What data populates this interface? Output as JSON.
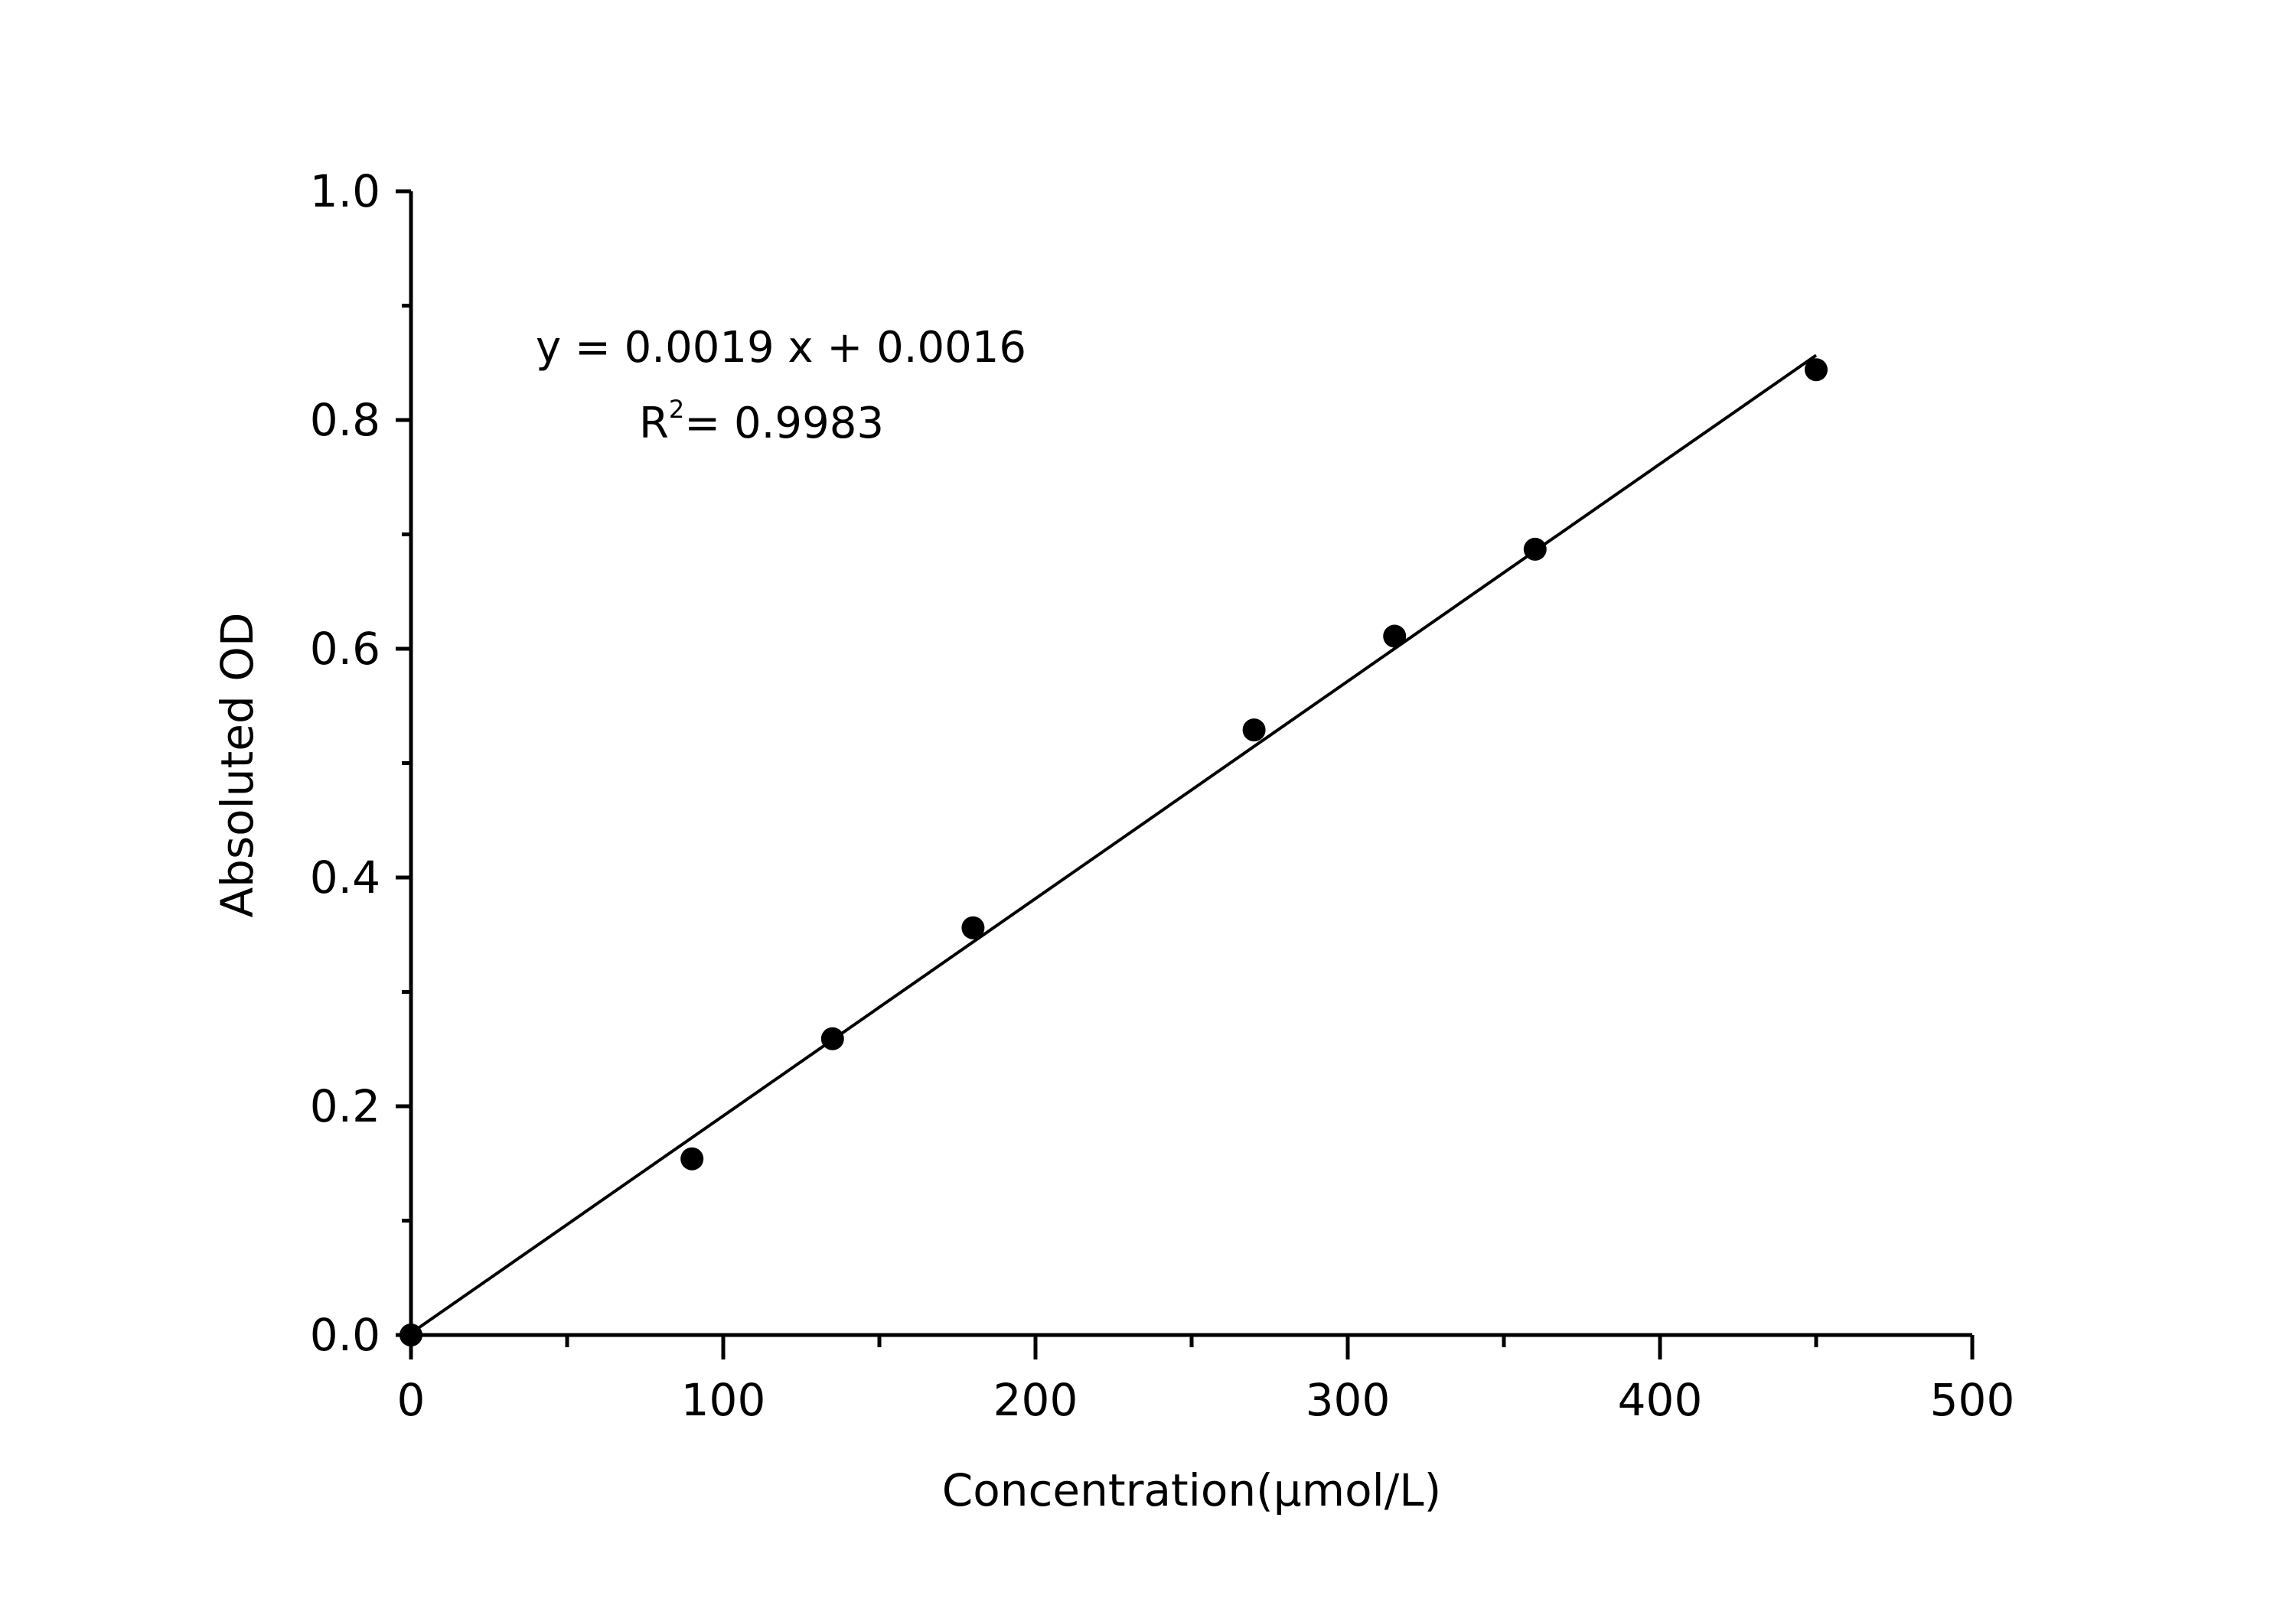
{
  "chart_data": {
    "type": "scatter",
    "xlabel": "Concentration(μmol/L)",
    "ylabel": "Absoluted OD",
    "xlim": [
      0,
      500
    ],
    "ylim": [
      0,
      1.0
    ],
    "xticks": [
      "0",
      "100",
      "200",
      "300",
      "400",
      "500"
    ],
    "yticks": [
      "0.0",
      "0.2",
      "0.4",
      "0.6",
      "0.8",
      "1.0"
    ],
    "grid": false,
    "points": {
      "x": [
        0,
        90,
        135,
        180,
        270,
        315,
        360,
        450
      ],
      "y": [
        0.0,
        0.154,
        0.259,
        0.356,
        0.529,
        0.611,
        0.687,
        0.844
      ]
    },
    "fit": {
      "slope": 0.0019,
      "intercept": 0.0016,
      "x_range": [
        0,
        450
      ],
      "equation": "y = 0.0019 x + 0.0016",
      "r2_label": "R",
      "r2_sup": "2",
      "r2_value": "= 0.9983"
    },
    "colors": {
      "marker": "#000000",
      "line": "#000000"
    }
  }
}
